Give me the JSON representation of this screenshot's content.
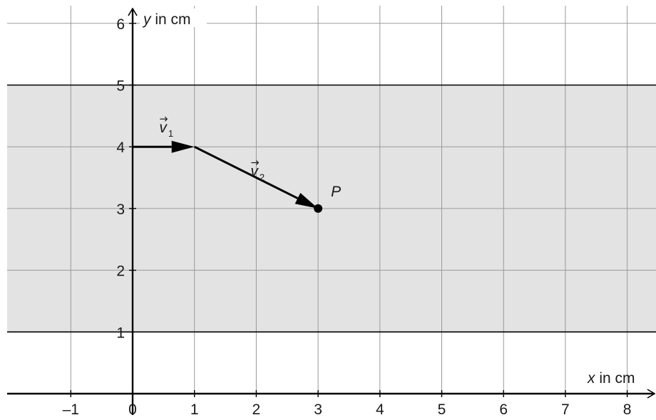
{
  "axes": {
    "x_label_var": "x",
    "x_label_unit": " in cm",
    "y_label_var": "y",
    "y_label_unit": " in cm",
    "x_ticks": [
      "–1",
      "0",
      "1",
      "2",
      "3",
      "4",
      "5",
      "6",
      "7",
      "8"
    ],
    "y_ticks": [
      "1",
      "2",
      "3",
      "4",
      "5",
      "6"
    ],
    "x_range": [
      -2,
      8.5
    ],
    "y_range": [
      0,
      6.3
    ]
  },
  "band": {
    "y_from": 1,
    "y_to": 5,
    "color": "#e3e3e3"
  },
  "vectors": [
    {
      "name": "v",
      "subscript": "1",
      "from": [
        0,
        4
      ],
      "to": [
        1,
        4
      ]
    },
    {
      "name": "v",
      "subscript": "2",
      "from": [
        1,
        4
      ],
      "to": [
        3,
        3
      ]
    }
  ],
  "point": {
    "label": "P",
    "x": 3,
    "y": 3
  },
  "colors": {
    "grid": "#9a9a9a",
    "axis": "#000000",
    "text": "#1a1a1a"
  }
}
